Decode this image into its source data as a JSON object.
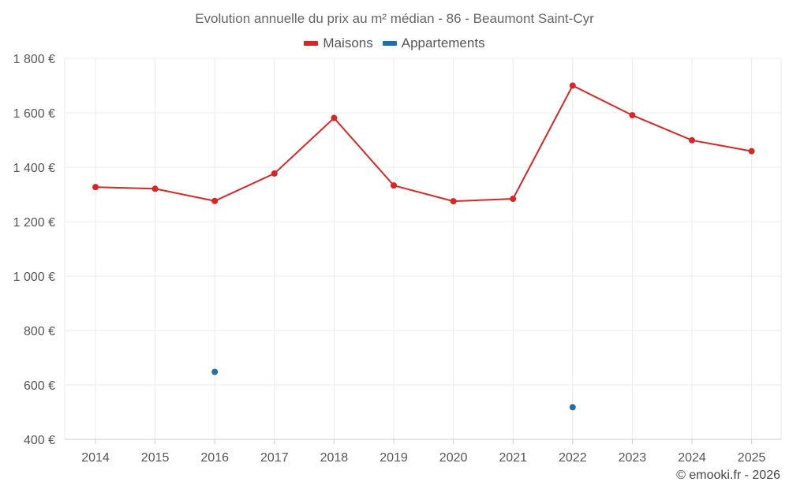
{
  "chart_data": {
    "type": "line",
    "title": "Evolution annuelle du prix au m² médian - 86 - Beaumont Saint-Cyr",
    "categories": [
      "2014",
      "2015",
      "2016",
      "2017",
      "2018",
      "2019",
      "2020",
      "2021",
      "2022",
      "2023",
      "2024",
      "2025"
    ],
    "series": [
      {
        "name": "Maisons",
        "color": "#d62728",
        "values": [
          1327,
          1321,
          1276,
          1377,
          1581,
          1333,
          1275,
          1284,
          1700,
          1591,
          1499,
          1459
        ]
      },
      {
        "name": "Appartements",
        "color": "#1f6fa8",
        "values": [
          null,
          null,
          648,
          null,
          null,
          null,
          null,
          null,
          518,
          null,
          null,
          null
        ]
      }
    ],
    "ylim": [
      400,
      1800
    ],
    "yticks": [
      400,
      600,
      800,
      1000,
      1200,
      1400,
      1600,
      1800
    ],
    "ytick_labels": [
      "400 €",
      "600 €",
      "800 €",
      "1 000 €",
      "1 200 €",
      "1 400 €",
      "1 600 €",
      "1 800 €"
    ],
    "xlabel": "",
    "ylabel": "",
    "grid": true,
    "legend_position": "top-center"
  },
  "credit": "© emooki.fr - 2026"
}
